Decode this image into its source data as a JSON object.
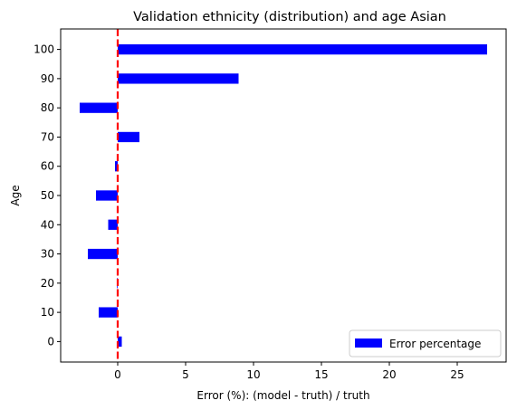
{
  "chart_data": {
    "type": "bar",
    "orientation": "horizontal",
    "title": "Validation ethnicity (distribution) and age Asian",
    "xlabel": "Error (%): (model - truth) / truth",
    "ylabel": "Age",
    "xlim": [
      -4.2,
      28.6
    ],
    "ylim": [
      -7,
      107
    ],
    "xticks": [
      0,
      5,
      10,
      15,
      20,
      25
    ],
    "yticks": [
      0,
      10,
      20,
      30,
      40,
      50,
      60,
      70,
      80,
      90,
      100
    ],
    "categories": [
      0,
      10,
      20,
      30,
      40,
      50,
      60,
      70,
      80,
      90,
      100
    ],
    "series": [
      {
        "name": "Error percentage",
        "color": "#0000ff",
        "values": [
          0.3,
          -1.4,
          -0.05,
          -2.2,
          -0.7,
          -1.6,
          -0.2,
          1.6,
          -2.8,
          8.9,
          27.2
        ]
      }
    ],
    "bar_height": 3.5,
    "reference_line": {
      "x": 0,
      "color": "#ff0000",
      "style": "dashed"
    },
    "legend": {
      "position": "bottom-right"
    },
    "grid": false
  }
}
